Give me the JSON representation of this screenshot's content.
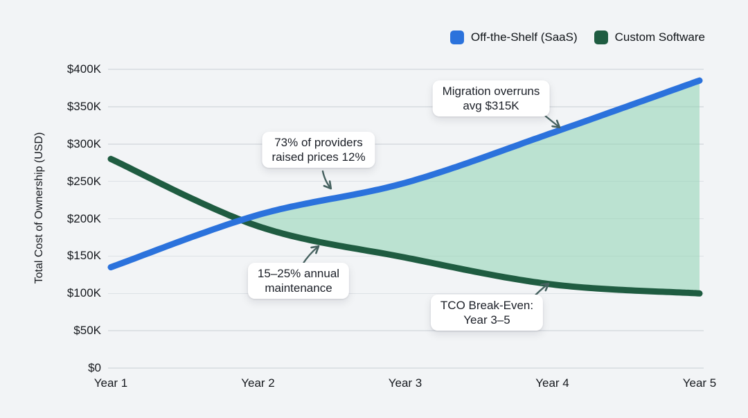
{
  "chart_data": {
    "type": "line",
    "title": "",
    "categories": [
      "Year 1",
      "Year 2",
      "Year 3",
      "Year 4",
      "Year 5"
    ],
    "series": [
      {
        "name": "Off-the-Shelf (SaaS)",
        "color": "#2b72dc",
        "values": [
          135000,
          205000,
          248000,
          315000,
          385000
        ]
      },
      {
        "name": "Custom Software",
        "color": "#1f5c41",
        "values": [
          280000,
          190000,
          148000,
          112000,
          100000
        ]
      }
    ],
    "xlabel": "",
    "ylabel": "Total Cost of Ownership (USD)",
    "ylim": [
      0,
      400000
    ],
    "yticks": [
      "$0",
      "$50K",
      "$100K",
      "$150K",
      "$200K",
      "$250K",
      "$300K",
      "$350K",
      "$400K"
    ],
    "ytick_values": [
      0,
      50000,
      100000,
      150000,
      200000,
      250000,
      300000,
      350000,
      400000
    ],
    "grid": true,
    "legend_position": "top-right",
    "area_between_series": true,
    "area_color": "rgba(142,212,178,0.55)",
    "annotations": [
      {
        "text": "73% of providers\nraised prices 12%"
      },
      {
        "text": "Migration overruns\navg $315K"
      },
      {
        "text": "15–25% annual\nmaintenance"
      },
      {
        "text": "TCO Break-Even:\nYear 3–5"
      }
    ]
  },
  "legend": {
    "items": [
      {
        "label": "Off-the-Shelf (SaaS)",
        "color": "#2b72dc"
      },
      {
        "label": "Custom Software",
        "color": "#1f5c41"
      }
    ]
  },
  "colors": {
    "background": "#f2f4f6",
    "gridline": "#dde1e5",
    "text": "#15181d",
    "annotation_arrow": "#466260"
  }
}
